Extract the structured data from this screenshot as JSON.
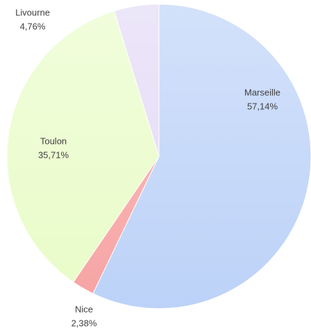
{
  "chart_data": {
    "type": "pie",
    "categories": [
      "Marseille",
      "Nice",
      "Toulon",
      "Livourne"
    ],
    "values": [
      57.14,
      2.38,
      35.71,
      4.76
    ],
    "value_labels": [
      "57,14%",
      "2,38%",
      "35,71%",
      "4,76%"
    ],
    "colors": [
      "#bcd2f8",
      "#f7a3a3",
      "#e9fcc8",
      "#e3d9f6"
    ]
  }
}
